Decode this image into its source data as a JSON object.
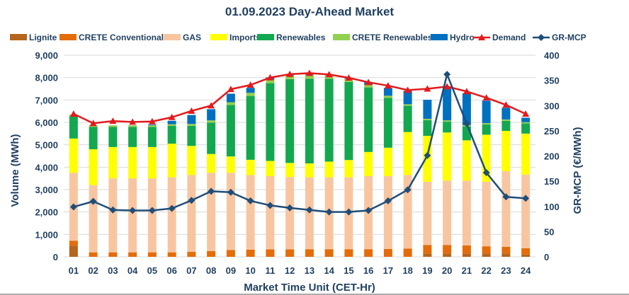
{
  "chart_data": {
    "type": "bar",
    "subtype": "stacked-bar-with-lines",
    "title": "01.09.2023  Day-Ahead Market",
    "xlabel": "Market Time Unit (CET-Hr)",
    "ylabel": "Volume (MWh)",
    "y2label": "GR-MCP (€/MWh)",
    "ylim": [
      0,
      9000
    ],
    "y2lim": [
      0,
      400
    ],
    "yticks": [
      0,
      1000,
      2000,
      3000,
      4000,
      5000,
      6000,
      7000,
      8000,
      9000
    ],
    "ytick_labels": [
      "0",
      "1,000",
      "2,000",
      "3,000",
      "4,000",
      "5,000",
      "6,000",
      "7,000",
      "8,000",
      "9,000"
    ],
    "y2ticks": [
      0,
      50,
      100,
      150,
      200,
      250,
      300,
      350,
      400
    ],
    "y2tick_labels": [
      "0",
      "50",
      "100",
      "150",
      "200",
      "250",
      "300",
      "350",
      "400"
    ],
    "grid": true,
    "legend_position": "top",
    "categories": [
      "01",
      "02",
      "03",
      "04",
      "05",
      "06",
      "07",
      "08",
      "09",
      "10",
      "11",
      "12",
      "13",
      "14",
      "15",
      "16",
      "17",
      "18",
      "19",
      "20",
      "21",
      "22",
      "23",
      "24"
    ],
    "series": [
      {
        "name": "Lignite",
        "kind": "bar",
        "color": "#b5651d",
        "values": [
          500,
          0,
          0,
          0,
          0,
          0,
          0,
          0,
          0,
          0,
          0,
          0,
          0,
          0,
          0,
          0,
          0,
          0,
          150,
          150,
          150,
          150,
          150,
          100
        ]
      },
      {
        "name": "CRETE Conventional",
        "kind": "bar",
        "color": "#e46c0a",
        "values": [
          220,
          200,
          200,
          200,
          200,
          200,
          220,
          260,
          300,
          320,
          330,
          330,
          340,
          340,
          340,
          340,
          350,
          370,
          380,
          380,
          360,
          320,
          300,
          280
        ]
      },
      {
        "name": "GAS",
        "kind": "bar",
        "color": "#f7c6a1",
        "values": [
          3030,
          3000,
          3300,
          3300,
          3300,
          3350,
          3430,
          3490,
          3450,
          3330,
          3270,
          3230,
          3210,
          3210,
          3210,
          3260,
          3250,
          3280,
          2820,
          2870,
          2890,
          2880,
          3370,
          3290
        ]
      },
      {
        "name": "Imports",
        "kind": "bar",
        "color": "#ffff00",
        "values": [
          1530,
          1600,
          1400,
          1400,
          1400,
          1500,
          1300,
          840,
          730,
          680,
          680,
          630,
          620,
          700,
          770,
          1080,
          1270,
          1920,
          2050,
          2150,
          1800,
          2100,
          1800,
          1830
        ]
      },
      {
        "name": "Renewables",
        "kind": "bar",
        "color": "#13a84f",
        "values": [
          1000,
          1000,
          900,
          900,
          900,
          800,
          900,
          1400,
          2300,
          2850,
          3470,
          3740,
          3780,
          3700,
          3480,
          2880,
          2220,
          1170,
          700,
          480,
          620,
          460,
          450,
          450
        ]
      },
      {
        "name": "CRETE Renewables",
        "kind": "bar",
        "color": "#92d050",
        "values": [
          70,
          70,
          70,
          70,
          70,
          70,
          80,
          100,
          120,
          140,
          160,
          170,
          180,
          170,
          150,
          120,
          100,
          70,
          60,
          60,
          60,
          60,
          60,
          60
        ]
      },
      {
        "name": "Hydro",
        "kind": "bar",
        "color": "#0070c0",
        "values": [
          0,
          0,
          0,
          0,
          30,
          150,
          400,
          500,
          380,
          220,
          100,
          50,
          50,
          0,
          30,
          120,
          350,
          600,
          850,
          1500,
          1420,
          1000,
          520,
          200
        ]
      },
      {
        "name": "Demand",
        "kind": "line",
        "axis": "left",
        "color": "#e31a1c",
        "marker": "triangle",
        "values": [
          6380,
          5960,
          6060,
          6020,
          6040,
          6230,
          6510,
          6750,
          7480,
          7670,
          8000,
          8150,
          8200,
          8140,
          7990,
          7790,
          7640,
          7440,
          7500,
          7600,
          7380,
          7100,
          6780,
          6380
        ]
      },
      {
        "name": "GR-MCP",
        "kind": "line",
        "axis": "right",
        "color": "#1f4e79",
        "marker": "diamond",
        "values": [
          99,
          110,
          93,
          92,
          92,
          96,
          112,
          130,
          128,
          111,
          102,
          97,
          93,
          89,
          89,
          92,
          111,
          133,
          201,
          362,
          264,
          167,
          119,
          116
        ]
      }
    ]
  }
}
